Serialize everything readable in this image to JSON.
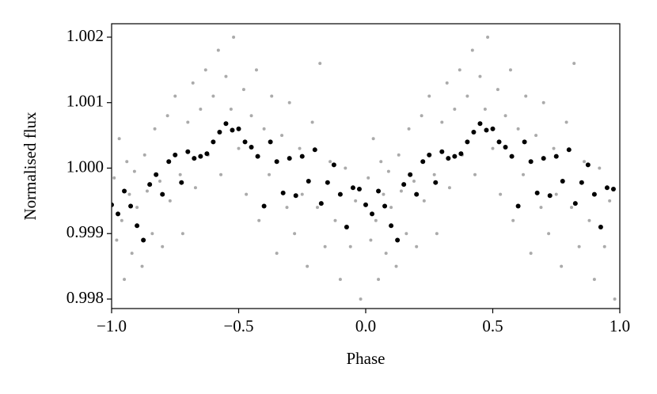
{
  "chart_data": {
    "type": "scatter",
    "xlabel": "Phase",
    "ylabel": "Normalised flux",
    "xlim": [
      -1,
      1
    ],
    "xticks": [
      {
        "value": -1,
        "label": "−1.0"
      },
      {
        "value": -0.5,
        "label": "−0.5"
      },
      {
        "value": 0,
        "label": "0.0"
      },
      {
        "value": 0.5,
        "label": "0.5"
      },
      {
        "value": 1,
        "label": "1.0"
      }
    ],
    "ylim": [
      0.997855,
      1.002205
    ],
    "yticks": [
      0.998,
      0.999,
      {
        "value": 1.0,
        "label": "1.000"
      },
      1.001,
      1.002
    ],
    "series": [
      {
        "color": "#aaaaaa",
        "x": [
          -0.99,
          -0.98,
          -0.97,
          -0.96,
          -0.95,
          -0.94,
          -0.93,
          -0.92,
          -0.91,
          -0.9,
          -0.88,
          -0.87,
          -0.86,
          -0.84,
          -0.83,
          -0.81,
          -0.8,
          -0.78,
          -0.77,
          -0.75,
          -0.73,
          -0.72,
          -0.7,
          -0.68,
          -0.67,
          -0.65,
          -0.63,
          -0.62,
          -0.6,
          -0.58,
          -0.57,
          -0.55,
          -0.53,
          -0.52,
          -0.5,
          -0.48,
          -0.47,
          -0.45,
          -0.43,
          -0.42,
          -0.4,
          -0.38,
          -0.37,
          -0.35,
          -0.33,
          -0.31,
          -0.3,
          -0.28,
          -0.26,
          -0.25,
          -0.23,
          -0.21,
          -0.19,
          -0.18,
          -0.16,
          -0.14,
          -0.12,
          -0.1,
          -0.08,
          -0.06,
          -0.04,
          -0.02,
          0.01,
          0.02,
          0.03,
          0.04,
          0.05,
          0.06,
          0.07,
          0.08,
          0.09,
          0.1,
          0.12,
          0.13,
          0.14,
          0.16,
          0.17,
          0.19,
          0.2,
          0.22,
          0.23,
          0.25,
          0.27,
          0.28,
          0.3,
          0.32,
          0.33,
          0.35,
          0.37,
          0.38,
          0.4,
          0.42,
          0.43,
          0.45,
          0.47,
          0.48,
          0.5,
          0.52,
          0.53,
          0.55,
          0.57,
          0.58,
          0.6,
          0.62,
          0.63,
          0.65,
          0.67,
          0.69,
          0.7,
          0.72,
          0.74,
          0.75,
          0.77,
          0.79,
          0.81,
          0.82,
          0.84,
          0.86,
          0.88,
          0.9,
          0.92,
          0.94,
          0.96,
          0.98
        ],
        "values": [
          0.99985,
          0.9989,
          1.00045,
          0.9992,
          0.9983,
          1.0001,
          0.9996,
          0.9987,
          0.99995,
          0.9994,
          0.9985,
          1.0002,
          0.99965,
          0.999,
          1.0006,
          0.9998,
          0.9988,
          1.0008,
          0.9995,
          1.0011,
          0.9999,
          0.999,
          1.0007,
          1.0013,
          0.9997,
          1.0009,
          1.0015,
          1.0002,
          1.0011,
          1.0018,
          0.9999,
          1.0014,
          1.0009,
          1.002,
          1.0003,
          1.0012,
          0.9996,
          1.0008,
          1.0015,
          0.9992,
          1.0006,
          0.9999,
          1.0011,
          0.9987,
          1.0005,
          0.9994,
          1.001,
          0.999,
          1.0003,
          0.9996,
          0.9985,
          1.0007,
          0.9994,
          1.0016,
          0.9988,
          1.0001,
          0.9992,
          0.9983,
          1.0,
          0.9988,
          0.9995,
          0.998,
          0.99985,
          0.9989,
          1.00045,
          0.9992,
          0.9983,
          1.0001,
          0.9996,
          0.9987,
          0.99995,
          0.9994,
          0.9985,
          1.0002,
          0.99965,
          0.999,
          1.0006,
          0.9998,
          0.9988,
          1.0008,
          0.9995,
          1.0011,
          0.9999,
          0.999,
          1.0007,
          1.0013,
          0.9997,
          1.0009,
          1.0015,
          1.0002,
          1.0011,
          1.0018,
          0.9999,
          1.0014,
          1.0009,
          1.002,
          1.0003,
          1.0012,
          0.9996,
          1.0008,
          1.0015,
          0.9992,
          1.0006,
          0.9999,
          1.0011,
          0.9987,
          1.0005,
          0.9994,
          1.001,
          0.999,
          1.0003,
          0.9996,
          0.9985,
          1.0007,
          0.9994,
          1.0016,
          0.9988,
          1.0001,
          0.9992,
          0.9983,
          1.0,
          0.9988,
          0.9995,
          0.998
        ]
      },
      {
        "color": "#000000",
        "x": [
          -1.0,
          -0.975,
          -0.95,
          -0.925,
          -0.9,
          -0.875,
          -0.85,
          -0.825,
          -0.8,
          -0.775,
          -0.75,
          -0.725,
          -0.7,
          -0.675,
          -0.65,
          -0.625,
          -0.6,
          -0.575,
          -0.55,
          -0.525,
          -0.5,
          -0.475,
          -0.45,
          -0.425,
          -0.4,
          -0.375,
          -0.35,
          -0.325,
          -0.3,
          -0.275,
          -0.25,
          -0.225,
          -0.2,
          -0.175,
          -0.15,
          -0.125,
          -0.1,
          -0.075,
          -0.05,
          -0.025,
          0.0,
          0.025,
          0.05,
          0.075,
          0.1,
          0.125,
          0.15,
          0.175,
          0.2,
          0.225,
          0.25,
          0.275,
          0.3,
          0.325,
          0.35,
          0.375,
          0.4,
          0.425,
          0.45,
          0.475,
          0.5,
          0.525,
          0.55,
          0.575,
          0.6,
          0.625,
          0.65,
          0.675,
          0.7,
          0.725,
          0.75,
          0.775,
          0.8,
          0.825,
          0.85,
          0.875,
          0.9,
          0.925,
          0.95,
          0.975
        ],
        "values": [
          0.99944,
          0.9993,
          0.99965,
          0.99942,
          0.99912,
          0.9989,
          0.99975,
          0.9999,
          0.9996,
          1.0001,
          1.0002,
          0.99978,
          1.00025,
          1.00015,
          1.00018,
          1.00022,
          1.0004,
          1.00055,
          1.00068,
          1.00058,
          1.0006,
          1.0004,
          1.00032,
          1.00018,
          0.99942,
          1.0004,
          1.0001,
          0.99962,
          1.00015,
          0.99958,
          1.00018,
          0.9998,
          1.00028,
          0.99946,
          0.99978,
          1.00005,
          0.9996,
          0.9991,
          0.9997,
          0.99968,
          0.99944,
          0.9993,
          0.99965,
          0.99942,
          0.99912,
          0.9989,
          0.99975,
          0.9999,
          0.9996,
          1.0001,
          1.0002,
          0.99978,
          1.00025,
          1.00015,
          1.00018,
          1.00022,
          1.0004,
          1.00055,
          1.00068,
          1.00058,
          1.0006,
          1.0004,
          1.00032,
          1.00018,
          0.99942,
          1.0004,
          1.0001,
          0.99962,
          1.00015,
          0.99958,
          1.00018,
          0.9998,
          1.00028,
          0.99946,
          0.99978,
          1.00005,
          0.9996,
          0.9991,
          0.9997,
          0.99968
        ]
      }
    ]
  }
}
